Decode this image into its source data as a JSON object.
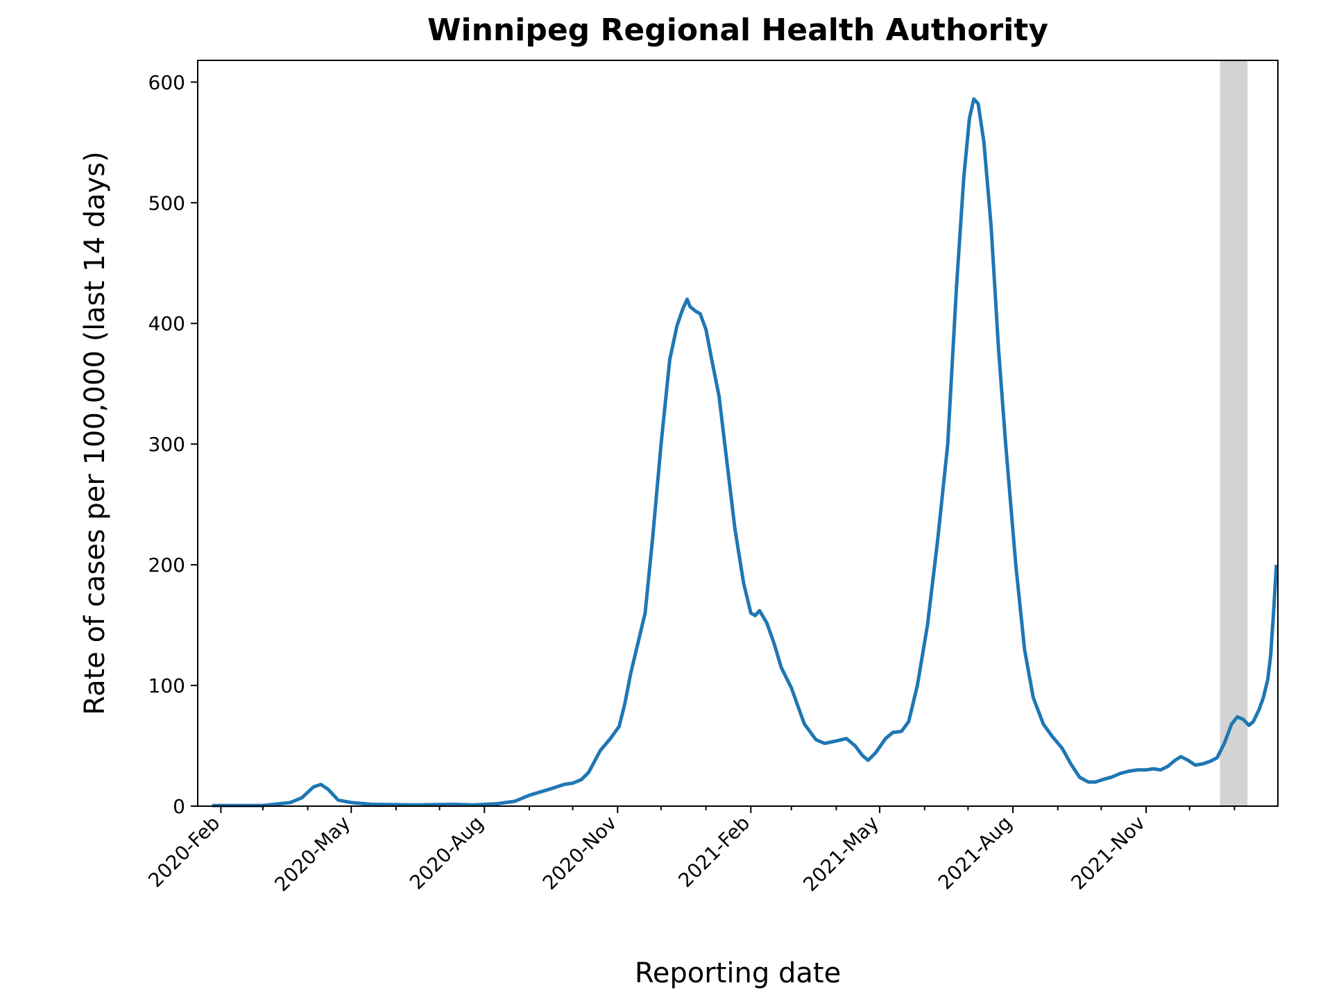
{
  "chart_data": {
    "type": "line",
    "title": "Winnipeg Regional Health Authority",
    "xlabel": "Reporting date",
    "ylabel": "Rate of cases per 100,000 (last 14 days)",
    "ylim": [
      0,
      618
    ],
    "xlim": [
      "2020-01-16",
      "2022-01-31"
    ],
    "yticks": [
      0,
      100,
      200,
      300,
      400,
      500,
      600
    ],
    "xticks": [
      {
        "date": "2020-02-01",
        "label": "2020-Feb"
      },
      {
        "date": "2020-05-01",
        "label": "2020-May"
      },
      {
        "date": "2020-08-01",
        "label": "2020-Aug"
      },
      {
        "date": "2020-11-01",
        "label": "2020-Nov"
      },
      {
        "date": "2021-02-01",
        "label": "2021-Feb"
      },
      {
        "date": "2021-05-01",
        "label": "2021-May"
      },
      {
        "date": "2021-08-01",
        "label": "2021-Aug"
      },
      {
        "date": "2021-11-01",
        "label": "2021-Nov"
      }
    ],
    "minor_xticks": [
      "2020-03-01",
      "2020-04-01",
      "2020-06-01",
      "2020-07-01",
      "2020-09-01",
      "2020-10-01",
      "2020-12-01",
      "2021-01-01",
      "2021-03-01",
      "2021-04-01",
      "2021-06-01",
      "2021-07-01",
      "2021-09-01",
      "2021-10-01",
      "2021-12-01",
      "2022-01-01"
    ],
    "shaded_region": {
      "start": "2021-12-22",
      "end": "2022-01-10",
      "color": "#d3d3d3"
    },
    "grid": false,
    "series": [
      {
        "color": "#1f77b4",
        "points": [
          [
            "2020-01-26",
            0.5
          ],
          [
            "2020-03-01",
            0.5
          ],
          [
            "2020-03-20",
            3
          ],
          [
            "2020-03-28",
            7
          ],
          [
            "2020-04-05",
            16
          ],
          [
            "2020-04-10",
            18
          ],
          [
            "2020-04-15",
            14
          ],
          [
            "2020-04-22",
            5
          ],
          [
            "2020-05-01",
            3
          ],
          [
            "2020-05-15",
            1.5
          ],
          [
            "2020-06-15",
            1
          ],
          [
            "2020-07-10",
            1.5
          ],
          [
            "2020-07-25",
            1
          ],
          [
            "2020-08-10",
            2
          ],
          [
            "2020-08-22",
            4
          ],
          [
            "2020-09-01",
            9
          ],
          [
            "2020-09-15",
            14
          ],
          [
            "2020-09-25",
            18
          ],
          [
            "2020-10-01",
            19
          ],
          [
            "2020-10-07",
            22
          ],
          [
            "2020-10-12",
            28
          ],
          [
            "2020-10-20",
            46
          ],
          [
            "2020-10-27",
            56
          ],
          [
            "2020-11-02",
            66
          ],
          [
            "2020-11-06",
            85
          ],
          [
            "2020-11-10",
            110
          ],
          [
            "2020-11-16",
            140
          ],
          [
            "2020-11-20",
            160
          ],
          [
            "2020-11-25",
            220
          ],
          [
            "2020-12-01",
            300
          ],
          [
            "2020-12-07",
            370
          ],
          [
            "2020-12-12",
            398
          ],
          [
            "2020-12-16",
            412
          ],
          [
            "2020-12-19",
            420
          ],
          [
            "2020-12-21",
            414
          ],
          [
            "2020-12-25",
            410
          ],
          [
            "2020-12-28",
            408
          ],
          [
            "2021-01-01",
            395
          ],
          [
            "2021-01-05",
            370
          ],
          [
            "2021-01-10",
            340
          ],
          [
            "2021-01-16",
            280
          ],
          [
            "2021-01-21",
            230
          ],
          [
            "2021-01-27",
            185
          ],
          [
            "2021-02-01",
            160
          ],
          [
            "2021-02-04",
            158
          ],
          [
            "2021-02-07",
            162
          ],
          [
            "2021-02-12",
            152
          ],
          [
            "2021-02-17",
            135
          ],
          [
            "2021-02-22",
            115
          ],
          [
            "2021-03-01",
            98
          ],
          [
            "2021-03-10",
            68
          ],
          [
            "2021-03-18",
            55
          ],
          [
            "2021-03-24",
            52
          ],
          [
            "2021-04-01",
            54
          ],
          [
            "2021-04-08",
            56
          ],
          [
            "2021-04-14",
            50
          ],
          [
            "2021-04-19",
            42
          ],
          [
            "2021-04-23",
            38
          ],
          [
            "2021-04-28",
            44
          ],
          [
            "2021-05-05",
            56
          ],
          [
            "2021-05-10",
            61
          ],
          [
            "2021-05-16",
            62
          ],
          [
            "2021-05-21",
            70
          ],
          [
            "2021-05-27",
            100
          ],
          [
            "2021-06-03",
            150
          ],
          [
            "2021-06-10",
            220
          ],
          [
            "2021-06-17",
            300
          ],
          [
            "2021-06-23",
            430
          ],
          [
            "2021-06-28",
            520
          ],
          [
            "2021-07-02",
            570
          ],
          [
            "2021-07-05",
            586
          ],
          [
            "2021-07-08",
            582
          ],
          [
            "2021-07-12",
            550
          ],
          [
            "2021-07-17",
            480
          ],
          [
            "2021-07-22",
            380
          ],
          [
            "2021-07-27",
            300
          ],
          [
            "2021-08-03",
            200
          ],
          [
            "2021-08-09",
            130
          ],
          [
            "2021-08-15",
            90
          ],
          [
            "2021-08-22",
            68
          ],
          [
            "2021-08-28",
            58
          ],
          [
            "2021-09-04",
            48
          ],
          [
            "2021-09-10",
            35
          ],
          [
            "2021-09-16",
            24
          ],
          [
            "2021-09-22",
            20
          ],
          [
            "2021-09-27",
            20
          ],
          [
            "2021-10-02",
            22
          ],
          [
            "2021-10-08",
            24
          ],
          [
            "2021-10-14",
            27
          ],
          [
            "2021-10-20",
            29
          ],
          [
            "2021-10-26",
            30
          ],
          [
            "2021-11-01",
            30
          ],
          [
            "2021-11-06",
            31
          ],
          [
            "2021-11-11",
            30
          ],
          [
            "2021-11-16",
            33
          ],
          [
            "2021-11-21",
            38
          ],
          [
            "2021-11-25",
            41
          ],
          [
            "2021-11-30",
            38
          ],
          [
            "2021-12-05",
            34
          ],
          [
            "2021-12-10",
            35
          ],
          [
            "2021-12-15",
            37
          ],
          [
            "2021-12-20",
            40
          ],
          [
            "2021-12-25",
            52
          ],
          [
            "2021-12-30",
            68
          ],
          [
            "2022-01-03",
            74
          ],
          [
            "2022-01-07",
            72
          ],
          [
            "2022-01-11",
            67
          ],
          [
            "2022-01-14",
            70
          ],
          [
            "2022-01-18",
            80
          ],
          [
            "2022-01-21",
            90
          ],
          [
            "2022-01-24",
            105
          ],
          [
            "2022-01-26",
            125
          ],
          [
            "2022-01-28",
            160
          ],
          [
            "2022-01-30",
            200
          ]
        ]
      }
    ]
  }
}
